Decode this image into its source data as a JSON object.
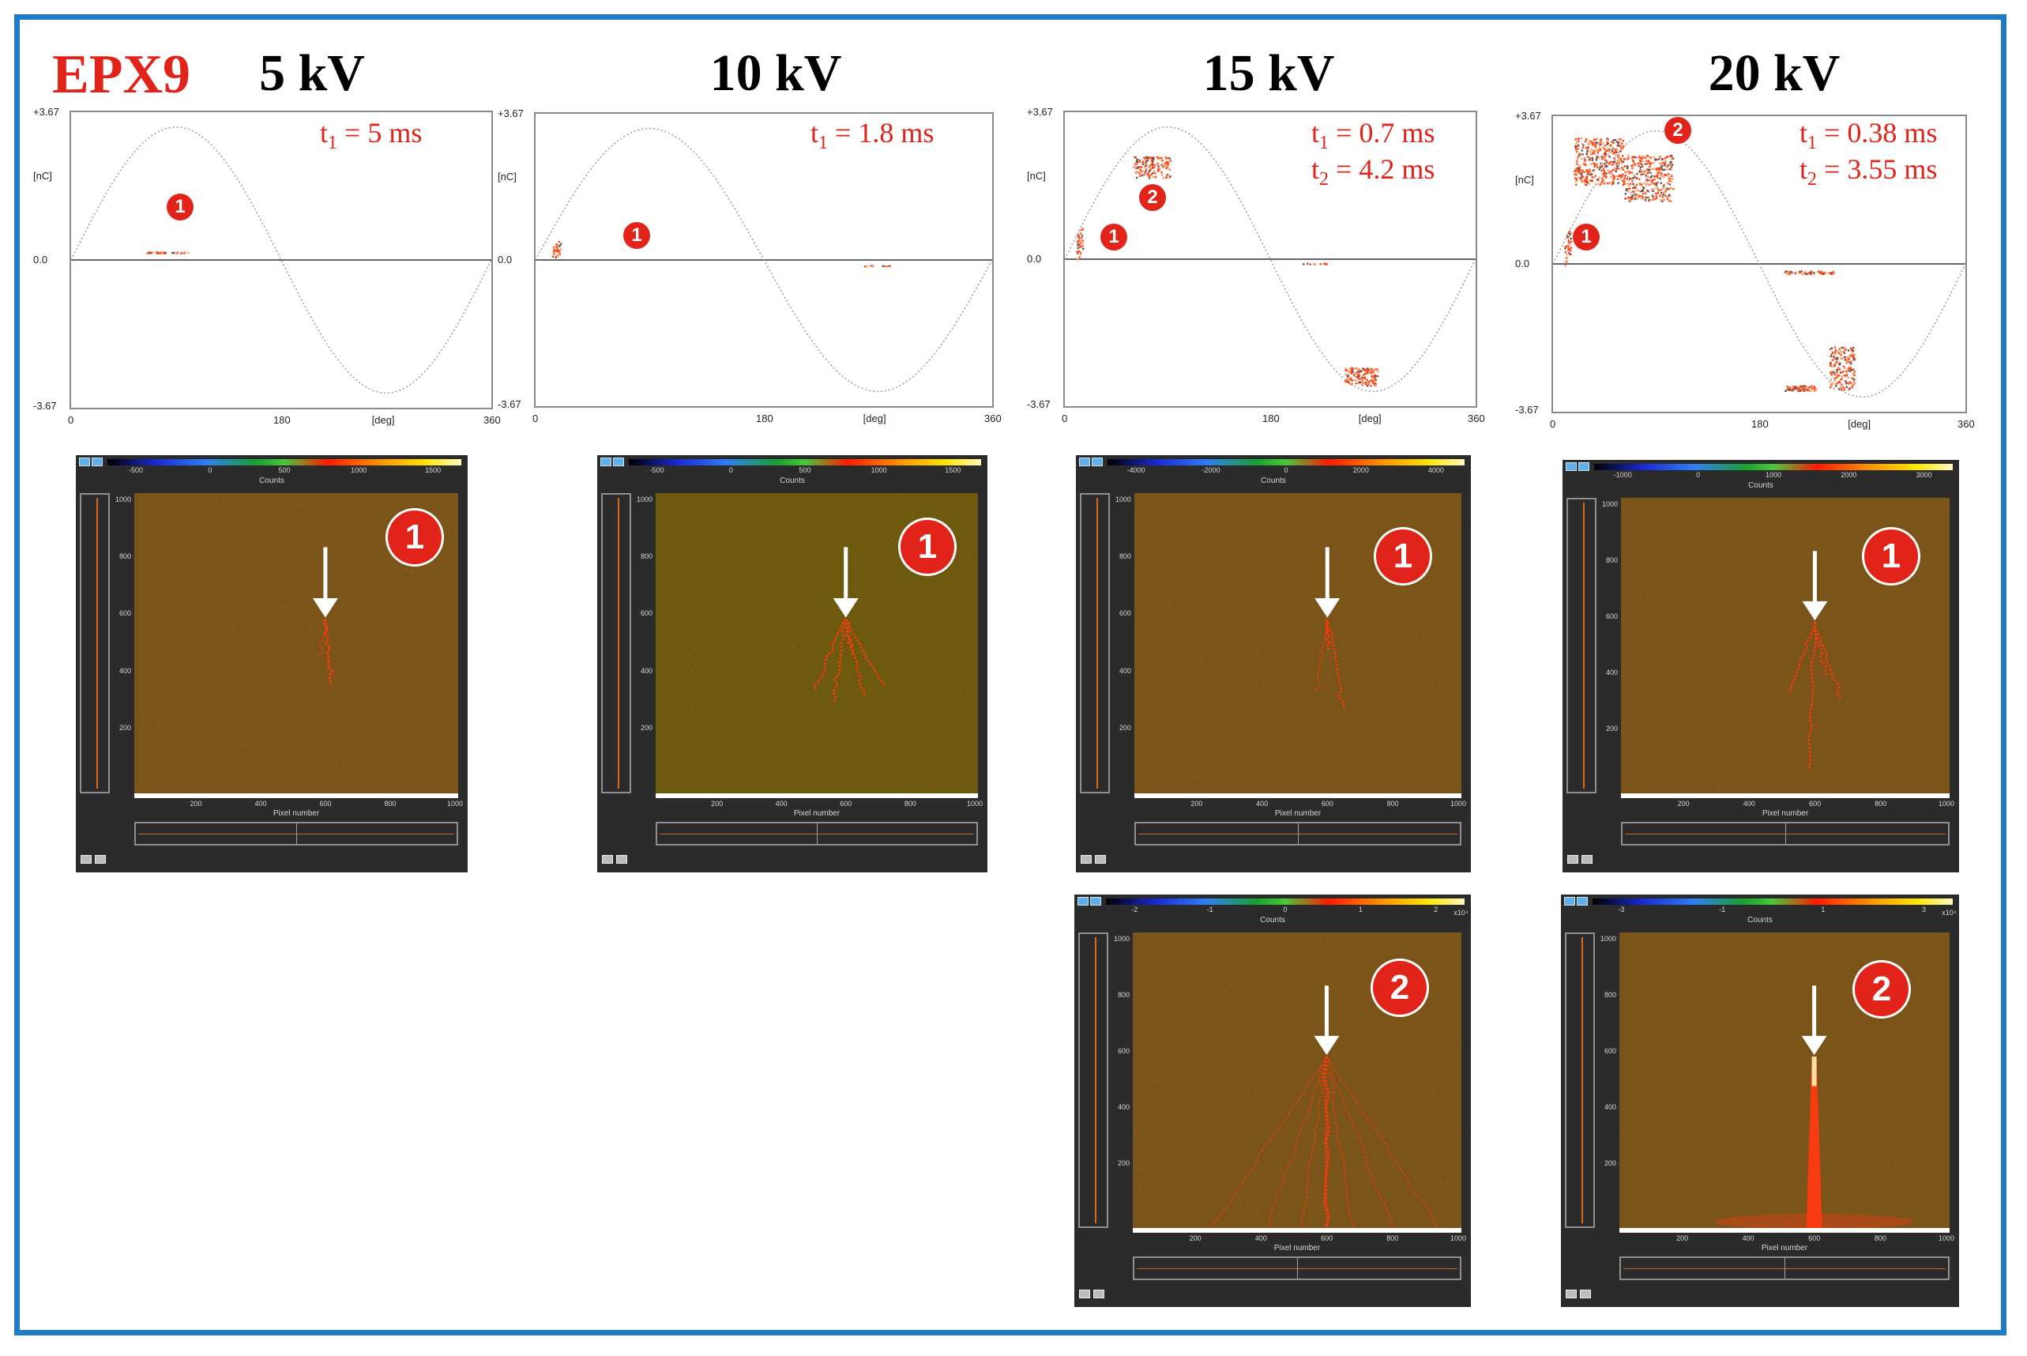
{
  "figure": {
    "sample": {
      "label": "EPX9",
      "color": "#e2231a"
    },
    "border_color": "#1e7bc4",
    "voltages": [
      "5 kV",
      "10 kV",
      "15 kV",
      "20 kV"
    ],
    "prpd_axis": {
      "y_ticks": [
        "+3.67",
        "[nC]",
        "0.0",
        "-3.67"
      ],
      "x_ticks": [
        "0",
        "180",
        "[deg]",
        "360"
      ],
      "y_range": [
        -3.67,
        3.67
      ],
      "x_range": [
        0,
        360
      ]
    },
    "prpd_plots": [
      {
        "voltage": "5 kV",
        "times": [
          {
            "sym": "t",
            "sub": "1",
            "val": " = 5 ms"
          }
        ],
        "markers": [
          "1"
        ]
      },
      {
        "voltage": "10 kV",
        "times": [
          {
            "sym": "t",
            "sub": "1",
            "val": " = 1.8 ms"
          }
        ],
        "markers": [
          "1"
        ]
      },
      {
        "voltage": "15 kV",
        "times": [
          {
            "sym": "t",
            "sub": "1",
            "val": " = 0.7 ms"
          },
          {
            "sym": "t",
            "sub": "2",
            "val": " = 4.2 ms"
          }
        ],
        "markers": [
          "1",
          "2"
        ]
      },
      {
        "voltage": "20 kV",
        "times": [
          {
            "sym": "t",
            "sub": "1",
            "val": " = 0.38 ms"
          },
          {
            "sym": "t",
            "sub": "2",
            "val": " = 3.55 ms"
          }
        ],
        "markers": [
          "1",
          "2"
        ]
      }
    ],
    "camera_panels": [
      {
        "id": "5kV-1",
        "badge": "1",
        "colorbar": [
          "-500",
          "0",
          "500",
          "1000",
          "1500"
        ],
        "colorbar_label": "Counts",
        "y_ticks": [
          "1000",
          "800",
          "600",
          "400",
          "200"
        ],
        "x_ticks": [
          "200",
          "400",
          "600",
          "800",
          "1000"
        ],
        "x_label": "Pixel number"
      },
      {
        "id": "10kV-1",
        "badge": "1",
        "colorbar": [
          "-500",
          "0",
          "500",
          "1000",
          "1500"
        ],
        "colorbar_label": "Counts",
        "y_ticks": [
          "1000",
          "800",
          "600",
          "400",
          "200"
        ],
        "x_ticks": [
          "200",
          "400",
          "600",
          "800",
          "1000"
        ],
        "x_label": "Pixel number"
      },
      {
        "id": "15kV-1",
        "badge": "1",
        "colorbar": [
          "-4000",
          "-2000",
          "0",
          "2000",
          "4000"
        ],
        "colorbar_label": "Counts",
        "y_ticks": [
          "1000",
          "800",
          "600",
          "400",
          "200"
        ],
        "x_ticks": [
          "200",
          "400",
          "600",
          "800",
          "1000"
        ],
        "x_label": "Pixel number"
      },
      {
        "id": "20kV-1",
        "badge": "1",
        "colorbar": [
          "-1000",
          "0",
          "1000",
          "2000",
          "3000"
        ],
        "colorbar_label": "Counts",
        "y_ticks": [
          "1000",
          "800",
          "600",
          "400",
          "200"
        ],
        "x_ticks": [
          "200",
          "400",
          "600",
          "800",
          "1000"
        ],
        "x_label": "Pixel number"
      },
      {
        "id": "15kV-2",
        "badge": "2",
        "colorbar": [
          "-2",
          "-1",
          "0",
          "1",
          "2"
        ],
        "colorbar_label": "Counts",
        "colorbar_exp": "x10⁴",
        "y_ticks": [
          "1000",
          "800",
          "600",
          "400",
          "200"
        ],
        "x_ticks": [
          "200",
          "400",
          "600",
          "800",
          "1000"
        ],
        "x_label": "Pixel number"
      },
      {
        "id": "20kV-2",
        "badge": "2",
        "colorbar": [
          "-3",
          "-1",
          "1",
          "3"
        ],
        "colorbar_label": "Counts",
        "colorbar_exp": "x10⁴",
        "y_ticks": [
          "1000",
          "800",
          "600",
          "400",
          "200"
        ],
        "x_ticks": [
          "200",
          "400",
          "600",
          "800",
          "1000"
        ],
        "x_label": "Pixel number"
      }
    ],
    "colors": {
      "marker": "#e2231a",
      "image_bg": "#7a5418",
      "streamer": "#ff3a10",
      "arrow": "#ffffff"
    }
  }
}
